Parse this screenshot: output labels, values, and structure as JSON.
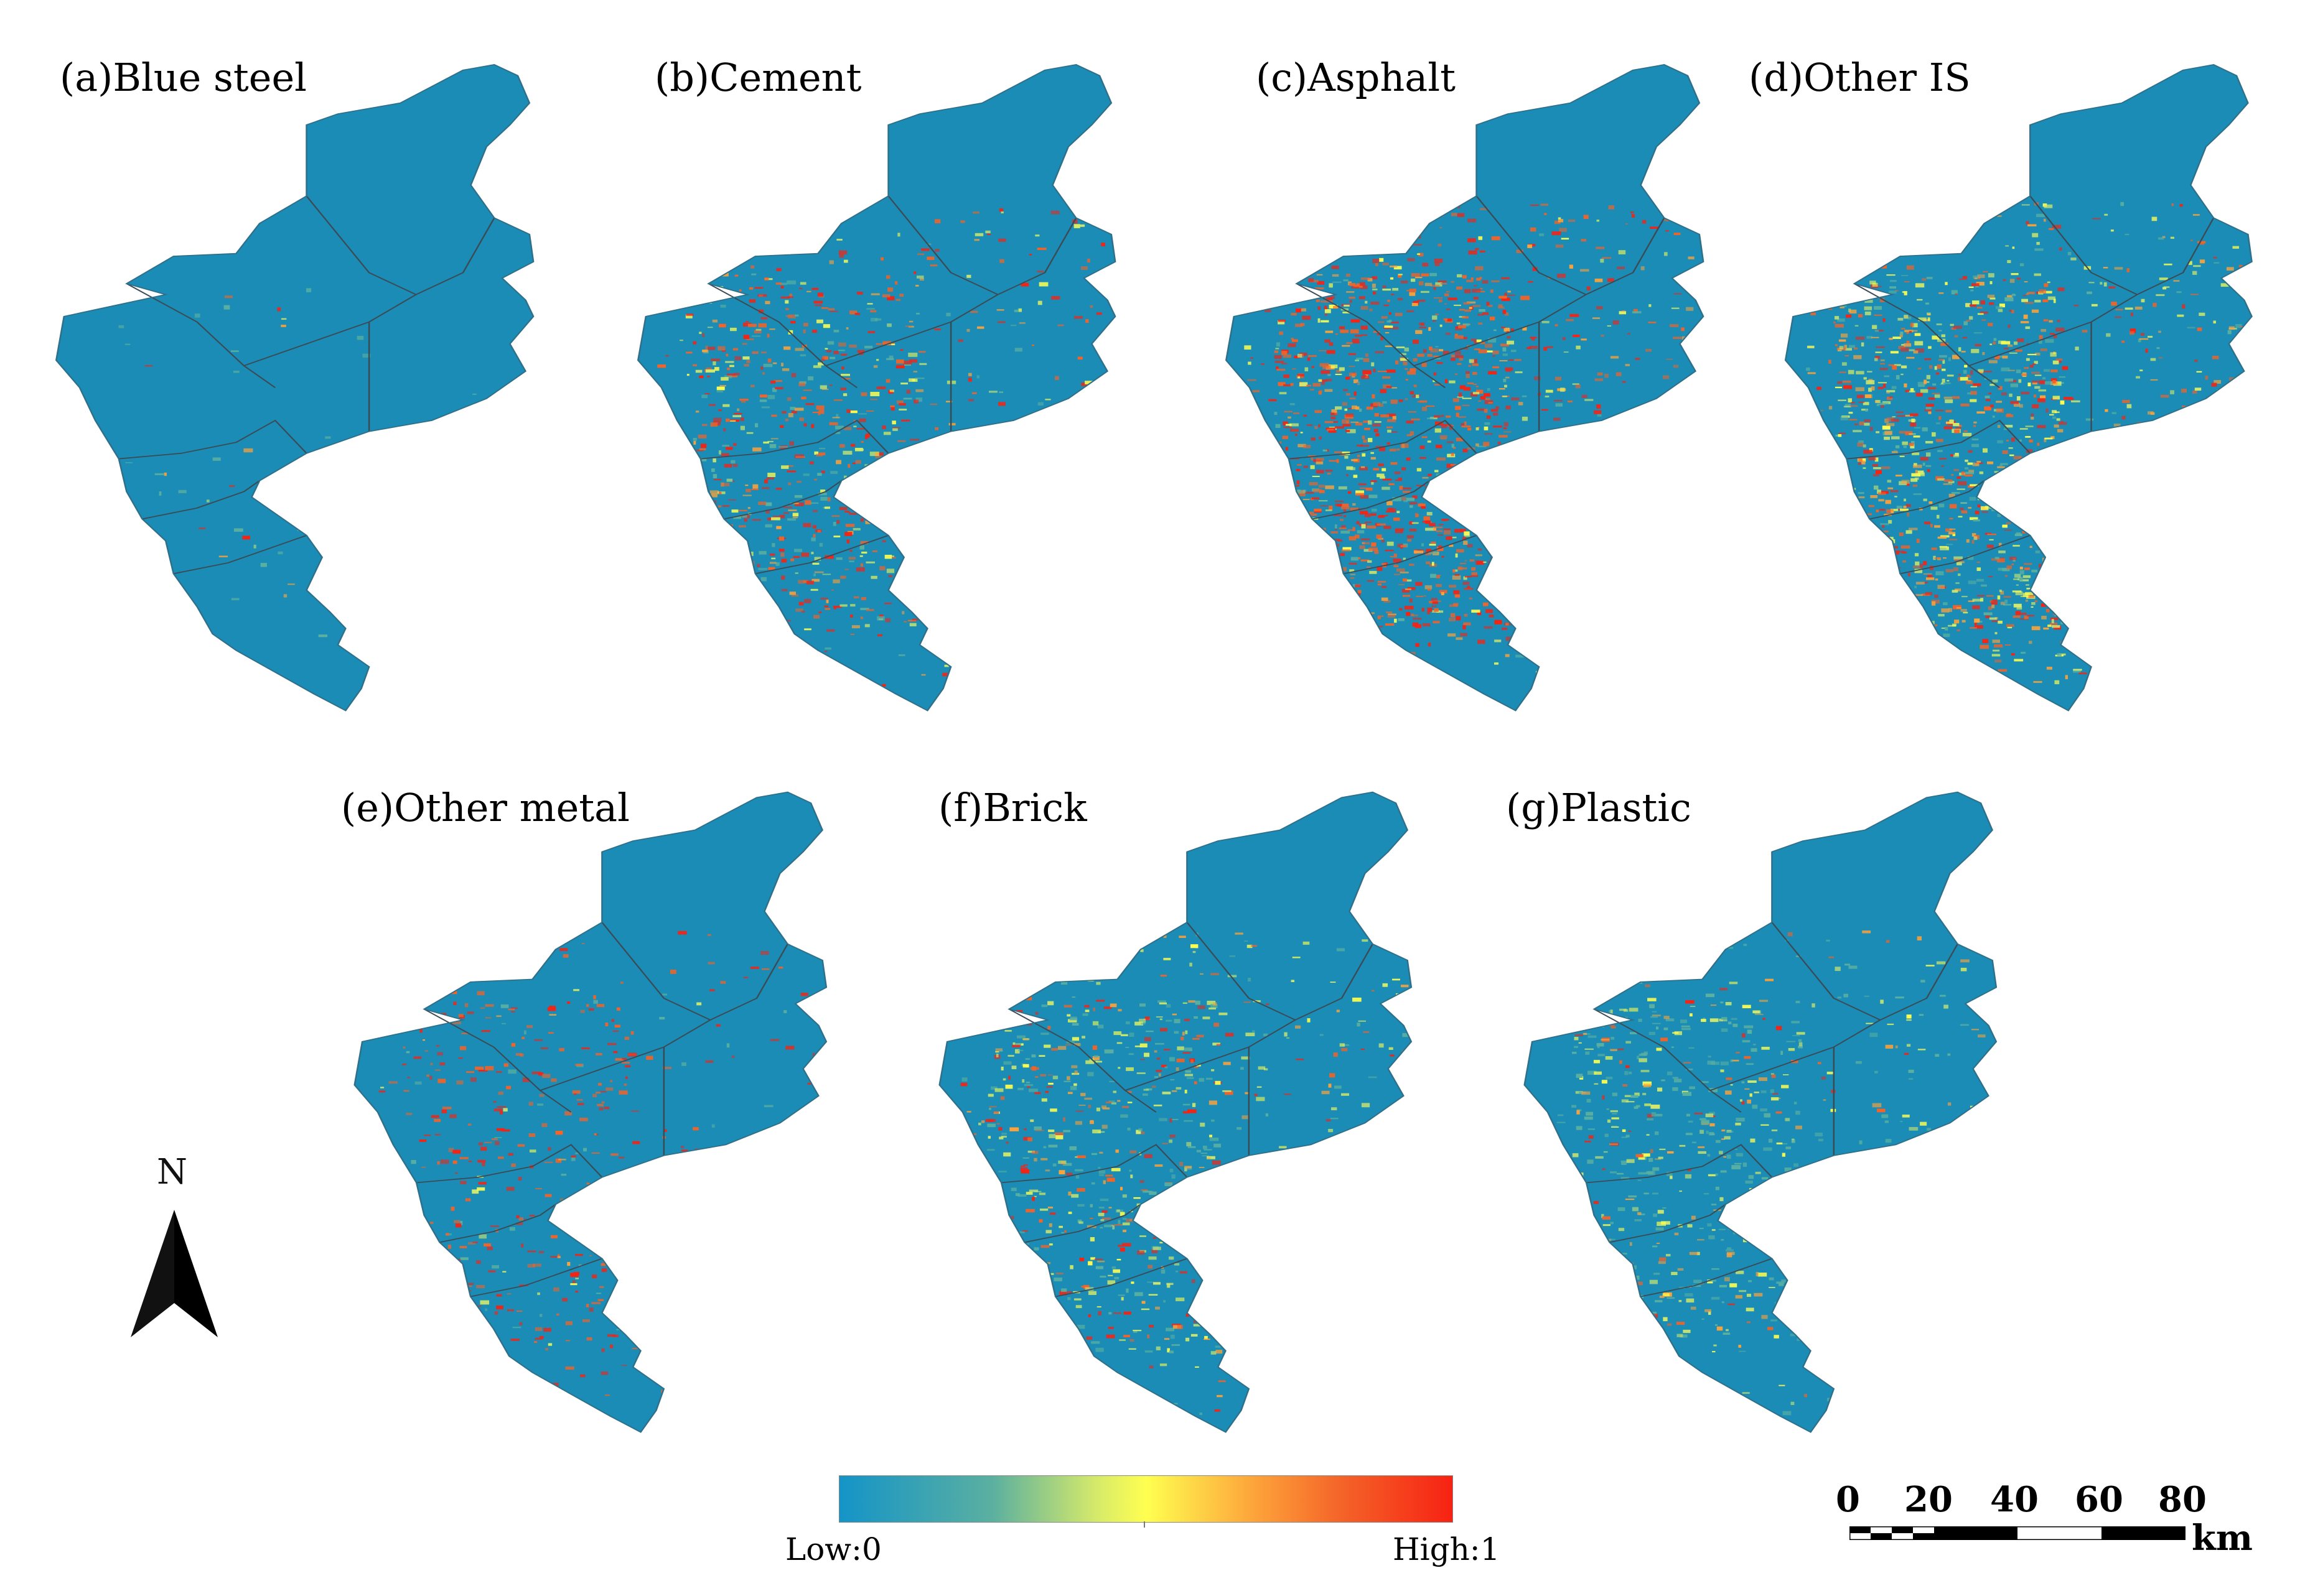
{
  "panels": [
    {
      "label": "(a)Blue steel"
    },
    {
      "label": "(b)Cement"
    },
    {
      "label": "(c)Asphalt"
    },
    {
      "label": "(d)Other IS"
    },
    {
      "label": "(e)Other metal"
    },
    {
      "label": "(f)Brick"
    },
    {
      "label": "(g)Plastic"
    }
  ],
  "north": {
    "label": "N",
    "icon": "north-arrow-icon"
  },
  "legend": {
    "low_label": "Low:0",
    "high_label": "High:1",
    "colors": [
      "#1494c8",
      "#5bb0a0",
      "#d6ea6a",
      "#ffff50",
      "#fda23a",
      "#f46328",
      "#f72213"
    ]
  },
  "scale": {
    "ticks": [
      "0",
      "20",
      "40",
      "60",
      "80"
    ],
    "unit": "km"
  },
  "colors": {
    "base": "#1a8cb5",
    "boundary": "#3b4b55",
    "low": "#1494c8",
    "high": "#f72213"
  }
}
